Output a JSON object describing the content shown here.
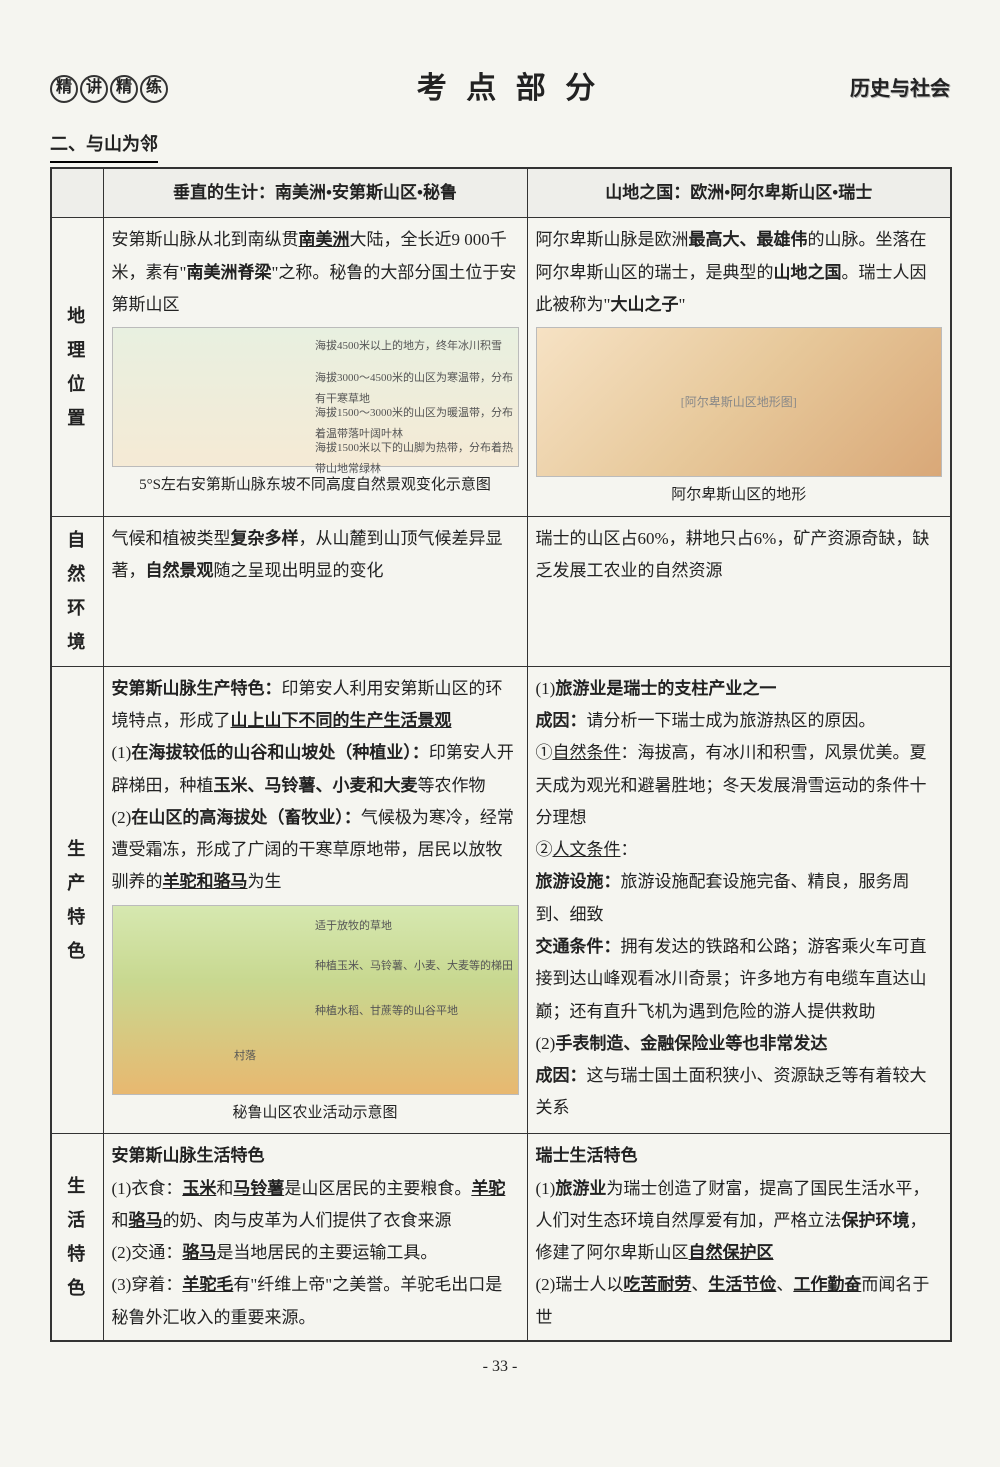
{
  "header": {
    "badges": [
      "精",
      "讲",
      "精",
      "练"
    ],
    "center": "考 点 部 分",
    "subject": "历史与社会"
  },
  "section_title": "二、与山为邻",
  "table": {
    "head_left": "垂直的生计：南美洲•安第斯山区•秘鲁",
    "head_right": "山地之国：欧洲•阿尔卑斯山区•瑞士",
    "rows": [
      {
        "label": "地理位置",
        "left_text": "安第斯山脉从北到南纵贯<span class='b u'>南美洲</span>大陆，全长近9 000千米，素有\"<span class='b'>南美洲脊梁</span>\"之称。秘鲁的大部分国土位于安第斯山区",
        "left_img_labels": {
          "l1": "海拔4500米以上的地方，终年冰川积雪",
          "l2": "海拔3000～4500米的山区为寒温带，分布有干寒草地",
          "l3": "海拔1500～3000米的山区为暖温带，分布着温带落叶阔叶林",
          "l4": "海拔1500米以下的山脚为热带，分布着热带山地常绿林"
        },
        "left_caption": "5°S左右安第斯山脉东坡不同高度自然景观变化示意图",
        "right_text": "阿尔卑斯山脉是欧洲<span class='b'>最高大、最雄伟</span>的山脉。坐落在阿尔卑斯山区的瑞士，是典型的<span class='b'>山地之国</span>。瑞士人因此被称为\"<span class='b'>大山之子</span>\"",
        "right_caption": "阿尔卑斯山区的地形"
      },
      {
        "label": "自然环境",
        "left": "气候和植被类型<span class='b'>复杂多样</span>，从山麓到山顶气候差异显著，<span class='b'>自然景观</span>随之呈现出明显的变化",
        "right": "瑞士的山区占60%，耕地只占6%，矿产资源奇缺，缺乏发展工农业的自然资源"
      },
      {
        "label": "生产特色",
        "left": "<span class='b'>安第斯山脉生产特色：</span>印第安人利用安第斯山区的环境特点，形成了<span class='u b'>山上山下不同的生产生活景观</span><br>(1)<span class='b'>在海拔较低的山谷和山坡处（种植业）：</span>印第安人开辟梯田，种植<span class='b'>玉米、马铃薯、小麦和大麦</span>等农作物<br>(2)<span class='b'>在山区的高海拔处（畜牧业）：</span>气候极为寒冷，经常遭受霜冻，形成了广阔的干寒草原地带，居民以放牧驯养的<span class='b u'>羊驼和骆马</span>为生",
        "left_img_labels2": {
          "a": "适于放牧的草地",
          "b": "种植玉米、马铃薯、小麦、大麦等的梯田",
          "c": "种植水稻、甘蔗等的山谷平地",
          "d": "村落"
        },
        "left_caption2": "秘鲁山区农业活动示意图",
        "right": "(1)<span class='b'>旅游业是瑞士的支柱产业之一</span><br><span class='b'>成因：</span>请分析一下瑞士成为旅游热区的原因。<br>①<span class='u'>自然条件</span>：海拔高，有冰川和积雪，风景优美。夏天成为观光和避暑胜地；冬天发展滑雪运动的条件十分理想<br>②<span class='u'>人文条件</span>：<br><span class='b'>旅游设施：</span>旅游设施配套设施完备、精良，服务周到、细致<br><span class='b'>交通条件：</span>拥有发达的铁路和公路；游客乘火车可直接到达山峰观看冰川奇景；许多地方有电缆车直达山巅；还有直升飞机为遇到危险的游人提供救助<br>(2)<span class='b'>手表制造、金融保险业等也非常发达</span><br><span class='b'>成因：</span>这与瑞士国土面积狭小、资源缺乏等有着较大关系"
      },
      {
        "label": "生活特色",
        "left": "<span class='b'>安第斯山脉生活特色</span><br>(1)衣食：<span class='u b'>玉米</span>和<span class='u b'>马铃薯</span>是山区居民的主要粮食。<span class='u b'>羊驼</span>和<span class='u b'>骆马</span>的奶、肉与皮革为人们提供了衣食来源<br>(2)交通：<span class='u b'>骆马</span>是当地居民的主要运输工具。<br>(3)穿着：<span class='u b'>羊驼毛</span>有\"纤维上帝\"之美誉。羊驼毛出口是秘鲁外汇收入的重要来源。",
        "right": "<span class='b'>瑞士生活特色</span><br>(1)<span class='b'>旅游业</span>为瑞士创造了财富，提高了国民生活水平，人们对生态环境自然厚爱有加，严格立法<span class='b'>保护环境</span>，修建了阿尔卑斯山区<span class='u b'>自然保护区</span><br>(2)瑞士人以<span class='u b'>吃苦耐劳</span>、<span class='u b'>生活节俭</span>、<span class='u b'>工作勤奋</span>而闻名于世"
      }
    ]
  },
  "page_number": "- 33 -"
}
